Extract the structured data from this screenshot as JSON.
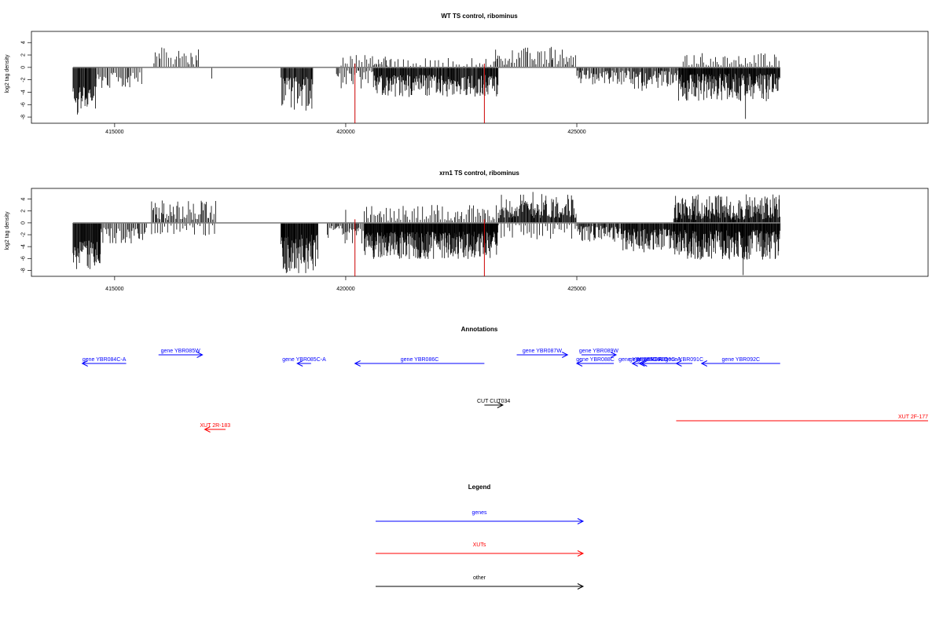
{
  "chart_data": [
    {
      "type": "bar",
      "title": "WT TS control, ribominus",
      "ylabel": "log2 tag density",
      "xlim": [
        413200,
        432600
      ],
      "ylim": [
        -9.0,
        5.8
      ],
      "x_ticks": [
        415000,
        420000,
        425000
      ],
      "x_tick_labels": [
        "415000",
        "420000",
        "425000"
      ],
      "y_ticks": [
        -8,
        -6,
        -4,
        -2,
        0,
        2,
        4
      ],
      "y_tick_labels": [
        "-8",
        "-6",
        "-4",
        "-2",
        "0",
        "2",
        "4"
      ],
      "baseline": {
        "from": 414100,
        "to": 429400,
        "color": "#808080"
      },
      "highlight_color": "#cc0000",
      "highlights": [
        {
          "x": 420200,
          "y": -9.0
        },
        {
          "x": 423000,
          "y": -9.0
        }
      ],
      "segments": [
        {
          "from": 414100,
          "to": 414600,
          "sign": -1,
          "max": 7.8,
          "min": 3.0,
          "step": 14
        },
        {
          "from": 414600,
          "to": 415600,
          "sign": -1,
          "max": 3.5,
          "min": 0.8,
          "step": 30
        },
        {
          "from": 415850,
          "to": 416850,
          "sign": 1,
          "max": 3.2,
          "min": 0.5,
          "step": 38
        },
        {
          "from": 418600,
          "to": 419300,
          "sign": -1,
          "max": 7.0,
          "min": 1.5,
          "step": 14
        },
        {
          "from": 419800,
          "to": 420600,
          "sign": -1,
          "max": 3.5,
          "min": 0.5,
          "step": 30
        },
        {
          "from": 419900,
          "to": 421000,
          "sign": 1,
          "max": 2.0,
          "min": 0.3,
          "step": 55
        },
        {
          "from": 420600,
          "to": 423300,
          "sign": -1,
          "max": 4.8,
          "min": 1.2,
          "step": 13
        },
        {
          "from": 420600,
          "to": 423300,
          "sign": 1,
          "max": 1.6,
          "min": 0.2,
          "step": 85
        },
        {
          "from": 423200,
          "to": 425000,
          "sign": 1,
          "max": 3.2,
          "min": 0.4,
          "step": 35
        },
        {
          "from": 425000,
          "to": 426200,
          "sign": -1,
          "max": 2.8,
          "min": 0.5,
          "step": 22
        },
        {
          "from": 426200,
          "to": 427200,
          "sign": -1,
          "max": 3.8,
          "min": 0.5,
          "step": 18
        },
        {
          "from": 427200,
          "to": 429400,
          "sign": -1,
          "max": 5.5,
          "min": 1.0,
          "step": 11
        },
        {
          "from": 427300,
          "to": 429400,
          "sign": 1,
          "max": 2.4,
          "min": 0.3,
          "step": 45
        }
      ],
      "spikes": [
        {
          "x": 417100,
          "y": -1.8
        },
        {
          "x": 426400,
          "y": -2.5
        },
        {
          "x": 428650,
          "y": -8.3
        },
        {
          "x": 424450,
          "y": 3.3
        }
      ]
    },
    {
      "type": "bar",
      "title": "xrn1 TS control, ribominus",
      "ylabel": "log2 tag density",
      "xlim": [
        413200,
        432600
      ],
      "ylim": [
        -9.0,
        5.8
      ],
      "x_ticks": [
        415000,
        420000,
        425000
      ],
      "x_tick_labels": [
        "415000",
        "420000",
        "425000"
      ],
      "y_ticks": [
        -8,
        -6,
        -4,
        -2,
        0,
        2,
        4
      ],
      "y_tick_labels": [
        "-8",
        "-6",
        "-4",
        "-2",
        "0",
        "2",
        "4"
      ],
      "baseline": {
        "from": 414100,
        "to": 429400,
        "color": "#808080"
      },
      "highlight_color": "#cc0000",
      "highlights": [
        {
          "x": 420200,
          "y": -9.0
        },
        {
          "x": 423000,
          "y": -9.0
        }
      ],
      "segments": [
        {
          "from": 414100,
          "to": 414700,
          "sign": -1,
          "max": 8.0,
          "min": 3.0,
          "step": 12
        },
        {
          "from": 414700,
          "to": 415700,
          "sign": -1,
          "max": 3.6,
          "min": 0.8,
          "step": 26
        },
        {
          "from": 415800,
          "to": 417200,
          "sign": 1,
          "max": 3.8,
          "min": 0.5,
          "step": 26
        },
        {
          "from": 415800,
          "to": 417200,
          "sign": -1,
          "max": 2.2,
          "min": 0.3,
          "step": 60
        },
        {
          "from": 418600,
          "to": 419400,
          "sign": -1,
          "max": 8.5,
          "min": 2.0,
          "step": 11
        },
        {
          "from": 419600,
          "to": 420400,
          "sign": -1,
          "max": 3.6,
          "min": 0.5,
          "step": 24
        },
        {
          "from": 420400,
          "to": 423300,
          "sign": -1,
          "max": 6.2,
          "min": 1.5,
          "step": 9
        },
        {
          "from": 420400,
          "to": 423300,
          "sign": 1,
          "max": 3.0,
          "min": 0.3,
          "step": 40
        },
        {
          "from": 423300,
          "to": 425000,
          "sign": 1,
          "max": 5.0,
          "min": 0.8,
          "step": 15
        },
        {
          "from": 423300,
          "to": 425000,
          "sign": -1,
          "max": 2.8,
          "min": 0.3,
          "step": 55
        },
        {
          "from": 425000,
          "to": 426000,
          "sign": -1,
          "max": 3.2,
          "min": 0.5,
          "step": 18
        },
        {
          "from": 426000,
          "to": 427100,
          "sign": -1,
          "max": 5.0,
          "min": 1.0,
          "step": 12
        },
        {
          "from": 427100,
          "to": 429400,
          "sign": 1,
          "max": 4.8,
          "min": 0.5,
          "step": 13
        },
        {
          "from": 427100,
          "to": 429400,
          "sign": -1,
          "max": 6.2,
          "min": 1.2,
          "step": 10
        }
      ],
      "spikes": [
        {
          "x": 420000,
          "y": 2.2
        },
        {
          "x": 428600,
          "y": -8.8
        },
        {
          "x": 424050,
          "y": 5.2
        },
        {
          "x": 427700,
          "y": -5.6
        }
      ]
    }
  ],
  "annotations": {
    "title": "Annotations",
    "features": [
      {
        "label": "gene YBR084C-A",
        "start": 414300,
        "end": 415250,
        "strand": "-",
        "color": "#0000ff",
        "row": 0,
        "label_pos": "center"
      },
      {
        "label": "gene YBR085W",
        "start": 415950,
        "end": 416900,
        "strand": "+",
        "color": "#0000ff",
        "row": 1,
        "label_pos": "center"
      },
      {
        "label": "gene YBR085C-A",
        "start": 418950,
        "end": 419250,
        "strand": "-",
        "color": "#0000ff",
        "row": 0,
        "label_pos": "center"
      },
      {
        "label": "gene YBR086C",
        "start": 420200,
        "end": 423000,
        "strand": "-",
        "color": "#0000ff",
        "row": 0,
        "label_pos": "center"
      },
      {
        "label": "gene YBR087W",
        "start": 423700,
        "end": 424800,
        "strand": "+",
        "color": "#0000ff",
        "row": 1,
        "label_pos": "center"
      },
      {
        "label": "gene YBR088C",
        "start": 425000,
        "end": 425800,
        "strand": "-",
        "color": "#0000ff",
        "row": 0,
        "label_pos": "center"
      },
      {
        "label": "gene YBR089W",
        "start": 425100,
        "end": 425850,
        "strand": "+",
        "color": "#0000ff",
        "row": 1,
        "label_pos": "center"
      },
      {
        "label": "gene YBR089C-A",
        "start": 426200,
        "end": 426550,
        "strand": "-",
        "color": "#0000ff",
        "row": 0,
        "label_pos": "center"
      },
      {
        "label": "gene YBR090C",
        "start": 426350,
        "end": 426750,
        "strand": "-",
        "color": "#0000ff",
        "row": 0,
        "label_pos": "center"
      },
      {
        "label": "gene YBR090C-A",
        "start": 426400,
        "end": 427150,
        "strand": "-",
        "color": "#0000ff",
        "row": 0,
        "label_pos": "center"
      },
      {
        "label": "gene YBR091C",
        "start": 427150,
        "end": 427500,
        "strand": "-",
        "color": "#0000ff",
        "row": 0,
        "label_pos": "center"
      },
      {
        "label": "gene YBR092C",
        "start": 427700,
        "end": 429400,
        "strand": "-",
        "color": "#0000ff",
        "row": 0,
        "label_pos": "center"
      },
      {
        "label": "CUT CUT034",
        "start": 423000,
        "end": 423400,
        "strand": "+",
        "color": "#000000",
        "row": 2,
        "label_pos": "center"
      },
      {
        "label": "XUT 2R-183",
        "start": 416950,
        "end": 417400,
        "strand": "-",
        "color": "#ff0000",
        "row": 3,
        "label_pos": "center"
      },
      {
        "label": "XUT 2F-177",
        "start": 427150,
        "end": 432600,
        "strand": "+",
        "color": "#ff0000",
        "row": 4,
        "label_pos": "end"
      }
    ]
  },
  "legend": {
    "title": "Legend",
    "items": [
      {
        "label": "genes",
        "color": "#0000ff"
      },
      {
        "label": "XUTs",
        "color": "#ff0000"
      },
      {
        "label": "other",
        "color": "#000000"
      }
    ]
  }
}
